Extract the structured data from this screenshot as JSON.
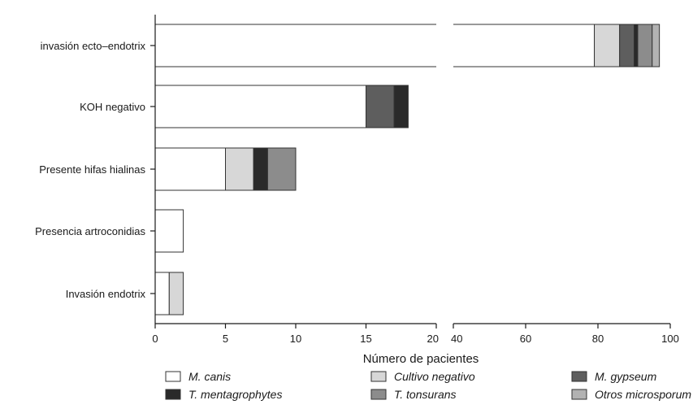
{
  "chart_data": {
    "type": "bar",
    "orientation": "horizontal",
    "stacked": true,
    "broken_axis": true,
    "x_segments": [
      [
        0,
        20
      ],
      [
        40,
        100
      ]
    ],
    "x_ticks_left": [
      0,
      5,
      10,
      15,
      20
    ],
    "x_ticks_right": [
      40,
      60,
      80,
      100
    ],
    "xlabel": "Número de pacientes",
    "ylabel": "",
    "title": "",
    "categories": [
      "invasión ecto–endotrix",
      "KOH negativo",
      "Presente hifas hialinas",
      "Presencia artroconidias",
      "Invasión endotrix"
    ],
    "series": [
      {
        "name": "M. canis",
        "color": "#ffffff",
        "values": [
          79,
          15,
          5,
          2,
          1
        ]
      },
      {
        "name": "Cultivo negativo",
        "color": "#d7d7d7",
        "values": [
          7,
          0,
          2,
          0,
          1
        ]
      },
      {
        "name": "M. gypseum",
        "color": "#5e5e5e",
        "values": [
          4,
          2,
          0,
          0,
          0
        ]
      },
      {
        "name": "T. mentagrophytes",
        "color": "#2a2a2a",
        "values": [
          1,
          1,
          1,
          0,
          0
        ]
      },
      {
        "name": "T. tonsurans",
        "color": "#8c8c8c",
        "values": [
          4,
          0,
          2,
          0,
          0
        ]
      },
      {
        "name": "Otros microsporum",
        "color": "#b2b2b2",
        "values": [
          2,
          0,
          0,
          0,
          0
        ]
      }
    ],
    "legend": {
      "position": "bottom",
      "columns": 3
    },
    "grid": false
  }
}
